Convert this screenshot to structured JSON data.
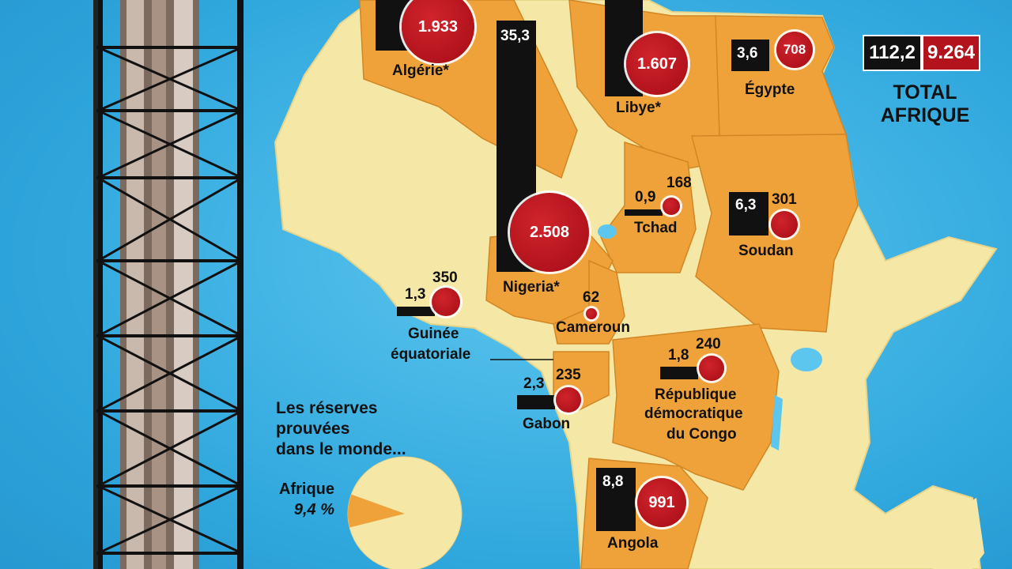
{
  "colors": {
    "ocean": "#2fa7dd",
    "land": "#f5e8a6",
    "producer": "#f0a23a",
    "oil_bar": "#111111",
    "gas_circle": "#b2131c"
  },
  "icons": [
    "oil-refinery-tower-image",
    "africa-map",
    "oil-bar",
    "gas-circle",
    "pie-chart"
  ],
  "countries": [
    {
      "name": "Algérie*",
      "oil": "",
      "gas": "1.933"
    },
    {
      "name": "Libye*",
      "oil": "",
      "gas": "1.607"
    },
    {
      "name": "Égypte",
      "oil": "3,6",
      "gas": "708"
    },
    {
      "name": "Nigeria*",
      "oil": "35,3",
      "gas": "2.508"
    },
    {
      "name": "Tchad",
      "oil": "0,9",
      "gas": "168"
    },
    {
      "name": "Soudan",
      "oil": "6,3",
      "gas": "301"
    },
    {
      "name": "Guinée équatoriale",
      "name_line1": "Guinée",
      "name_line2": "équatoriale",
      "oil": "1,3",
      "gas": "350"
    },
    {
      "name": "Cameroun",
      "oil": "",
      "gas": "62"
    },
    {
      "name": "Gabon",
      "oil": "2,3",
      "gas": "235"
    },
    {
      "name": "République démocratique du Congo",
      "name_line1": "République",
      "name_line2": "démocratique",
      "name_line3": "du Congo",
      "oil": "1,8",
      "gas": "240"
    },
    {
      "name": "Angola",
      "oil": "8,8",
      "gas": "991"
    }
  ],
  "total": {
    "oil": "112,2",
    "gas": "9.264",
    "label_line1": "TOTAL",
    "label_line2": "AFRIQUE"
  },
  "world_share": {
    "caption_line1": "Les réserves",
    "caption_line2": "prouvées",
    "caption_line3": "dans le monde...",
    "label": "Afrique",
    "percent_text": "9,4 %",
    "percent": 9.4
  }
}
